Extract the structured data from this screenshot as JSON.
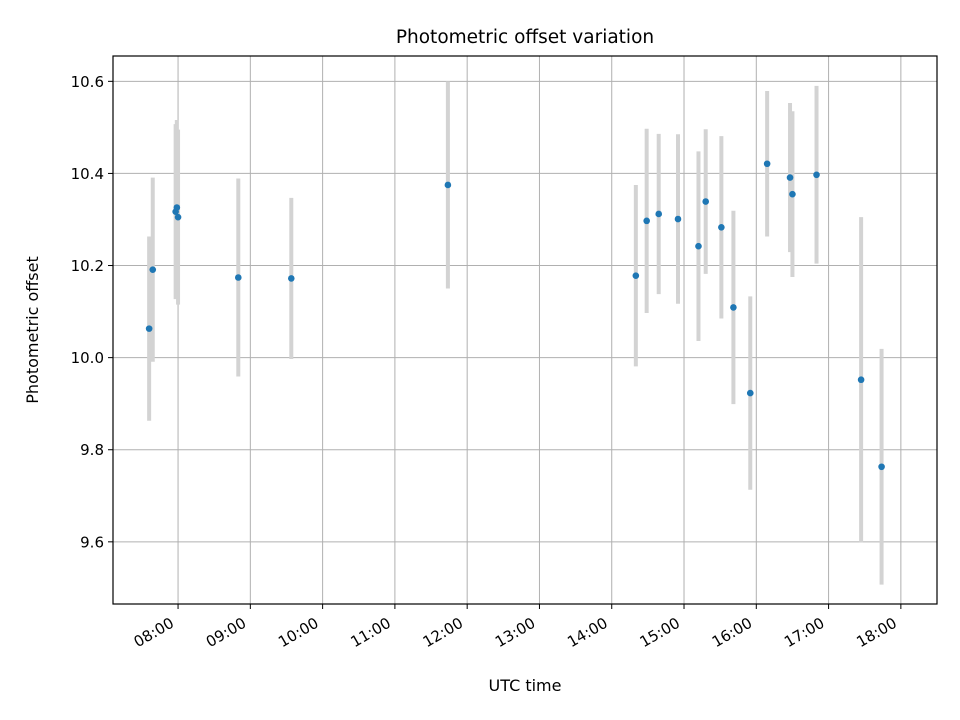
{
  "chart_data": {
    "type": "scatter",
    "title": "Photometric offset variation",
    "xlabel": "UTC time",
    "ylabel": "Photometric offset",
    "xlim": [
      "07:06",
      "18:30"
    ],
    "ylim": [
      9.465,
      10.655
    ],
    "x_ticks": [
      "08:00",
      "09:00",
      "10:00",
      "11:00",
      "12:00",
      "13:00",
      "14:00",
      "15:00",
      "16:00",
      "17:00",
      "18:00"
    ],
    "y_ticks": [
      "9.6",
      "9.8",
      "10.0",
      "10.2",
      "10.4",
      "10.6"
    ],
    "grid": true,
    "point_color": "#1f77b4",
    "errorbar_color": "#d3d3d3",
    "points": [
      {
        "x": "07:36",
        "y": 10.063,
        "err": 0.2
      },
      {
        "x": "07:39",
        "y": 10.191,
        "err": 0.2
      },
      {
        "x": "07:58",
        "y": 10.317,
        "err": 0.19
      },
      {
        "x": "07:59",
        "y": 10.326,
        "err": 0.19
      },
      {
        "x": "08:00",
        "y": 10.305,
        "err": 0.19
      },
      {
        "x": "08:50",
        "y": 10.174,
        "err": 0.215
      },
      {
        "x": "09:34",
        "y": 10.172,
        "err": 0.175
      },
      {
        "x": "11:44",
        "y": 10.375,
        "err": 0.225
      },
      {
        "x": "14:20",
        "y": 10.178,
        "err": 0.197
      },
      {
        "x": "14:29",
        "y": 10.297,
        "err": 0.2
      },
      {
        "x": "14:39",
        "y": 10.312,
        "err": 0.174
      },
      {
        "x": "14:55",
        "y": 10.301,
        "err": 0.184
      },
      {
        "x": "15:12",
        "y": 10.242,
        "err": 0.206
      },
      {
        "x": "15:18",
        "y": 10.339,
        "err": 0.157
      },
      {
        "x": "15:31",
        "y": 10.283,
        "err": 0.198
      },
      {
        "x": "15:41",
        "y": 10.109,
        "err": 0.21
      },
      {
        "x": "15:55",
        "y": 9.923,
        "err": 0.21
      },
      {
        "x": "16:09",
        "y": 10.421,
        "err": 0.158
      },
      {
        "x": "16:28",
        "y": 10.391,
        "err": 0.162
      },
      {
        "x": "16:30",
        "y": 10.355,
        "err": 0.18
      },
      {
        "x": "16:50",
        "y": 10.397,
        "err": 0.193
      },
      {
        "x": "17:27",
        "y": 9.952,
        "err": 0.353
      },
      {
        "x": "17:44",
        "y": 9.763,
        "err": 0.256
      }
    ]
  }
}
